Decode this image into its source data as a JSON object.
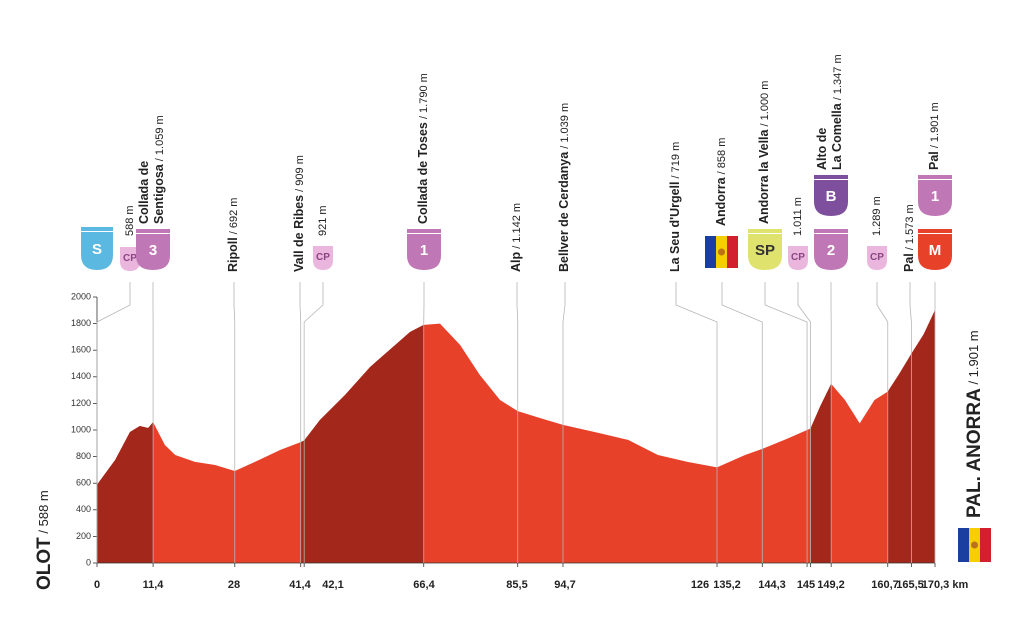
{
  "chart_data": {
    "type": "area",
    "x": [
      0,
      3.7,
      6.7,
      8.7,
      10.4,
      11.4,
      13.8,
      15.9,
      19.9,
      24,
      28,
      32.1,
      37.2,
      41.4,
      42.1,
      45.3,
      50.4,
      55.5,
      60.6,
      63.6,
      66.4,
      69.7,
      73.8,
      77.8,
      81.9,
      85.5,
      90,
      94.7,
      102,
      108,
      114,
      120,
      126,
      131.7,
      135.2,
      140,
      144.3,
      145,
      147,
      149.2,
      152,
      155,
      158,
      160.7,
      163,
      165.5,
      168,
      170.3
    ],
    "values": [
      588,
      775,
      985,
      1030,
      1015,
      1059,
      887,
      812,
      760,
      737,
      692,
      760,
      850,
      909,
      921,
      1075,
      1263,
      1474,
      1639,
      1737,
      1790,
      1800,
      1639,
      1414,
      1226,
      1142,
      1090,
      1039,
      977,
      925,
      812,
      760,
      719,
      812,
      858,
      930,
      1000,
      1011,
      1180,
      1347,
      1226,
      1050,
      1226,
      1289,
      1420,
      1573,
      1720,
      1901
    ],
    "color": "#e8412a",
    "climb_color": "#a3281b",
    "xlim": [
      0,
      170.3
    ],
    "ylim": [
      0,
      2000
    ],
    "yticks": [
      0,
      200,
      400,
      600,
      800,
      1000,
      1200,
      1400,
      1600,
      1800,
      2000
    ],
    "xticks": [
      0,
      {
        "value": 11.4,
        "label": "11,4"
      },
      28,
      {
        "value": 41.4,
        "label": "41,4"
      },
      {
        "value": 42.1,
        "label": "42,1"
      },
      {
        "value": 66.4,
        "label": "66,4"
      },
      {
        "value": 85.5,
        "label": "85,5"
      },
      {
        "value": 94.7,
        "label": "94,7"
      },
      126,
      {
        "value": 135.2,
        "label": "135,2"
      },
      {
        "value": 144.3,
        "label": "144,3"
      },
      145,
      {
        "value": 149.2,
        "label": "149,2"
      },
      {
        "value": 160.7,
        "label": "160,7"
      },
      {
        "value": 165.5,
        "label": "165,5"
      },
      {
        "value": 170.3,
        "label": "170,3 km"
      }
    ],
    "start": {
      "name": "OLOT",
      "altitude": "/ 588 m"
    },
    "finish": {
      "name": "PAL. ANORRA",
      "altitude": "/ 1.901 m"
    },
    "waypoints": [
      {
        "altitude": "588 m",
        "badges": [
          {
            "text": "S",
            "color": "#5bb8e0",
            "text_color": "#ffffff"
          },
          {
            "text": "CP",
            "color": "#ebb6dd",
            "text_color": "#8a4682"
          }
        ]
      },
      {
        "name": [
          "Collada de",
          "Sentigosa"
        ],
        "altitude": "/ 1.059 m",
        "badges": [
          {
            "text": "3",
            "color": "#c077b5",
            "text_color": "#ffffff"
          }
        ]
      },
      {
        "name": "Ripoll",
        "altitude": "/ 692 m",
        "badges": []
      },
      {
        "name": "Vall de Ribes",
        "altitude": "/ 909 m",
        "badges": []
      },
      {
        "altitude": "921 m",
        "badges": [
          {
            "text": "CP",
            "color": "#ebb6dd",
            "text_color": "#8a4682"
          }
        ]
      },
      {
        "name": "Collada de Toses",
        "altitude": "/ 1.790 m",
        "badges": [
          {
            "text": "1",
            "color": "#c077b5",
            "text_color": "#ffffff"
          }
        ]
      },
      {
        "name": "Alp",
        "altitude": "/ 1.142 m",
        "badges": []
      },
      {
        "name": "Bellver de Cerdanya",
        "altitude": "/ 1.039 m",
        "badges": []
      },
      {
        "name": "La Seu d'Urgell",
        "altitude": "/ 719 m",
        "badges": []
      },
      {
        "name": "Andorra",
        "altitude": "/ 858 m",
        "badges": []
      },
      {
        "name": "Andorra la Vella",
        "altitude": "/ 1.000 m",
        "badges": [
          {
            "text": "SP",
            "color": "#dfe36e",
            "text_color": "#333333"
          }
        ]
      },
      {
        "altitude": "1.011 m",
        "badges": [
          {
            "text": "CP",
            "color": "#ebb6dd",
            "text_color": "#8a4682"
          }
        ]
      },
      {
        "name": [
          "Alto de",
          "La Comella"
        ],
        "altitude": "/ 1.347 m",
        "badges": [
          {
            "text": "2",
            "color": "#c077b5",
            "text_color": "#ffffff"
          },
          {
            "text": "B",
            "color": "#7e4f9c",
            "text_color": "#ffffff"
          }
        ]
      },
      {
        "altitude": "1.289 m",
        "badges": [
          {
            "text": "CP",
            "color": "#ebb6dd",
            "text_color": "#8a4682"
          }
        ]
      },
      {
        "name": "Pal",
        "altitude": "/ 1.573 m",
        "badges": []
      },
      {
        "name": "Pal",
        "altitude": "/ 1.901 m",
        "badges": [
          {
            "text": "M",
            "color": "#e8412a",
            "text_color": "#ffffff"
          },
          {
            "text": "1",
            "color": "#c077b5",
            "text_color": "#ffffff"
          }
        ]
      }
    ]
  }
}
